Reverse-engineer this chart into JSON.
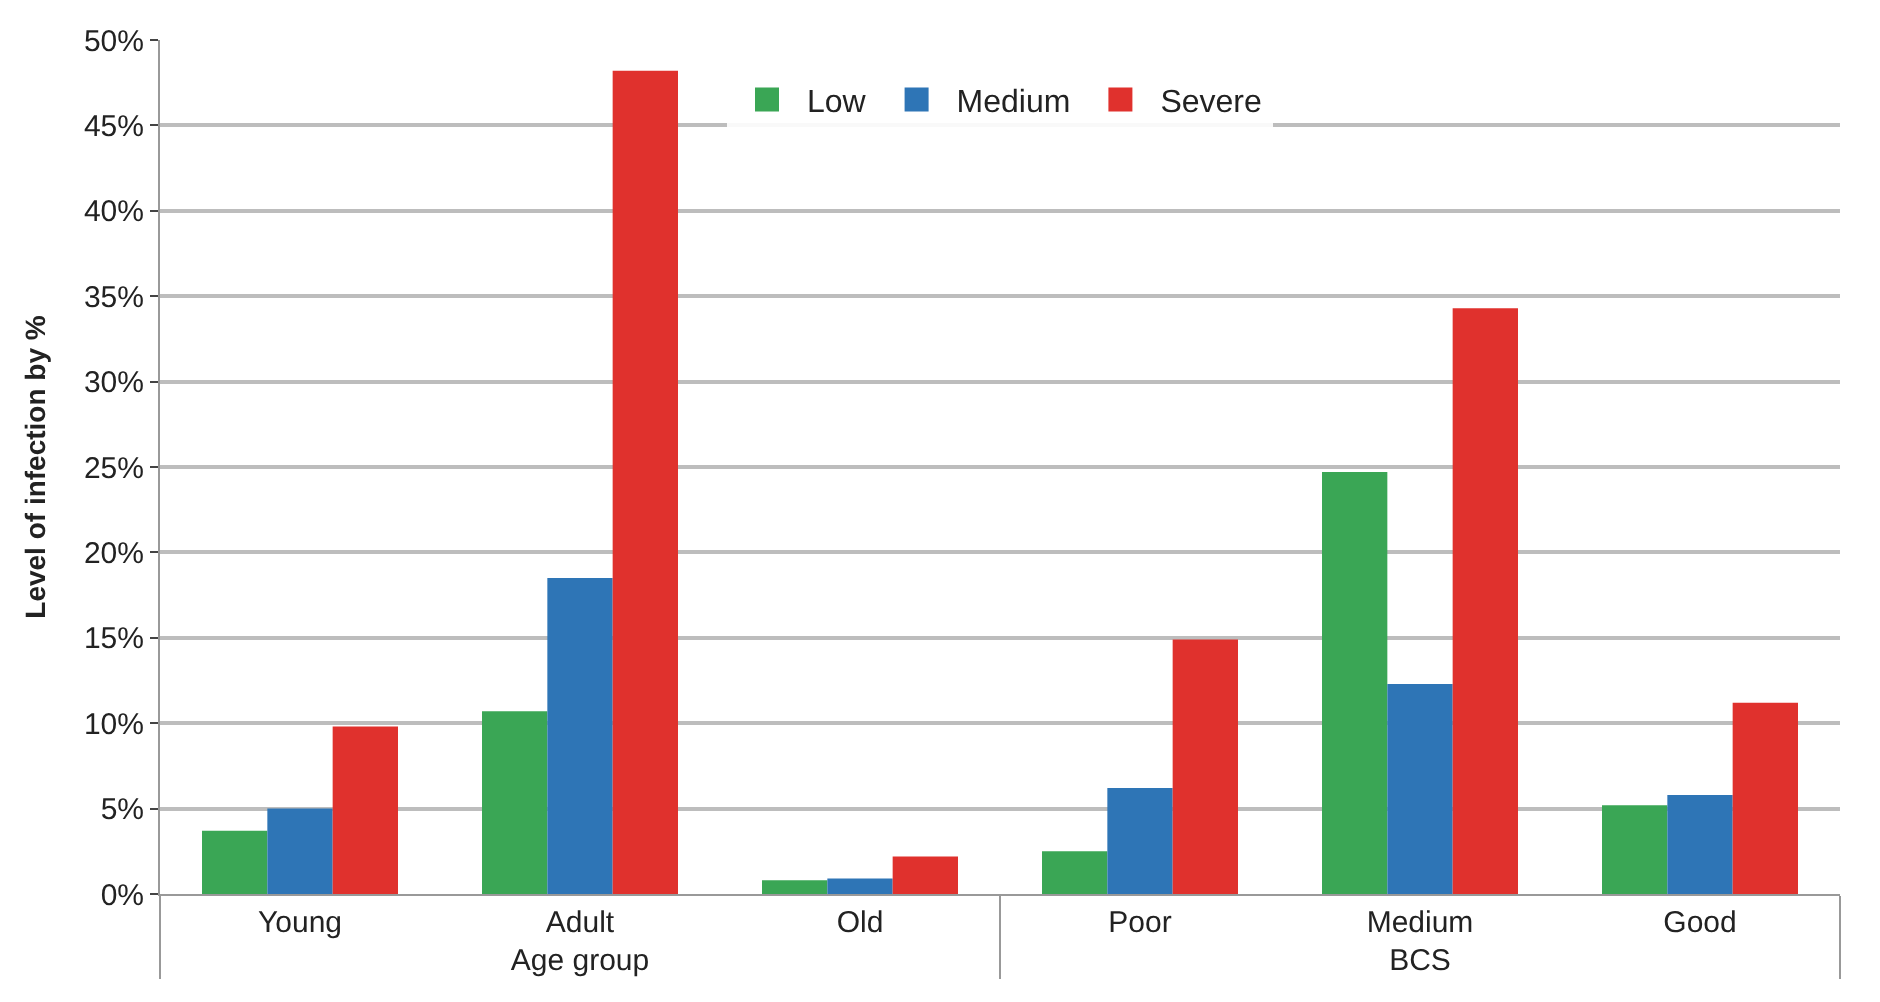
{
  "chart_data": {
    "type": "bar",
    "ylabel": "Level of infection by %",
    "categories": [
      "Young",
      "Adult",
      "Old",
      "Poor",
      "Medium",
      "Good"
    ],
    "annotations": [
      "Age group",
      "BCS"
    ],
    "series": [
      {
        "name": "Low",
        "color": "#3aa655",
        "values": [
          3.7,
          10.7,
          0.8,
          2.5,
          24.7,
          5.2
        ]
      },
      {
        "name": "Medium",
        "color": "#2e75b6",
        "values": [
          5.0,
          18.5,
          0.9,
          6.2,
          12.3,
          5.8
        ]
      },
      {
        "name": "Severe",
        "color": "#e0312d",
        "values": [
          9.8,
          48.2,
          2.2,
          14.9,
          34.3,
          11.2
        ]
      }
    ],
    "ylim": [
      0,
      50
    ],
    "yticks": [
      {
        "value": 0,
        "label": "0%"
      },
      {
        "value": 5,
        "label": "5%"
      },
      {
        "value": 10,
        "label": "10%"
      },
      {
        "value": 15,
        "label": "15%"
      },
      {
        "value": 20,
        "label": "20%"
      },
      {
        "value": 25,
        "label": "25%"
      },
      {
        "value": 30,
        "label": "30%"
      },
      {
        "value": 35,
        "label": "35%"
      },
      {
        "value": 40,
        "label": "40%"
      },
      {
        "value": 45,
        "label": "45%"
      },
      {
        "value": 50,
        "label": "50%"
      }
    ],
    "grid": "y",
    "legend": "top"
  }
}
